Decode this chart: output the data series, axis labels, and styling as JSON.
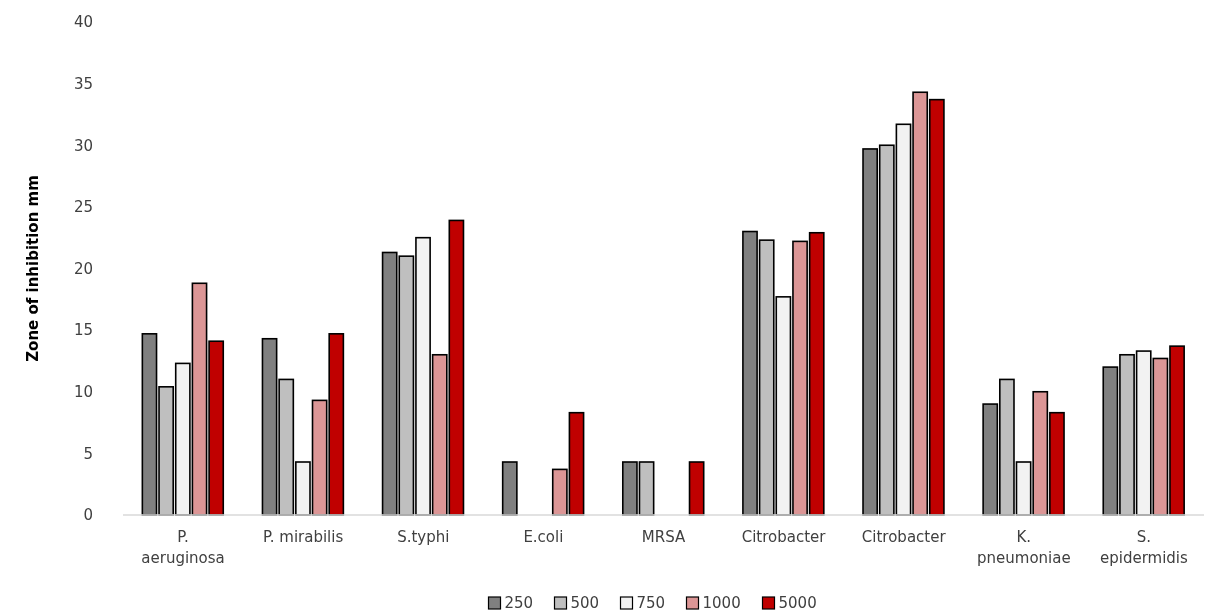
{
  "chart_data": {
    "type": "bar",
    "ylabel": "Zone of inhibition mm",
    "categories": [
      "P. aeruginosa",
      "P. mirabilis",
      "S.typhi",
      "E.coli",
      "MRSA",
      "Citrobacter",
      "Citrobacter",
      "K. pneumoniae",
      "S. epidermidis"
    ],
    "series": [
      {
        "name": "250",
        "color": "#808080",
        "values": [
          14.7,
          14.3,
          21.3,
          4.3,
          4.3,
          23.0,
          29.7,
          9.0,
          12.0
        ]
      },
      {
        "name": "500",
        "color": "#bfbfbf",
        "values": [
          10.4,
          11.0,
          21.0,
          null,
          4.3,
          22.3,
          30.0,
          11.0,
          13.0
        ]
      },
      {
        "name": "750",
        "color": "#f2f2f2",
        "values": [
          12.3,
          4.3,
          22.5,
          null,
          null,
          17.7,
          31.7,
          4.3,
          13.3
        ]
      },
      {
        "name": "1000",
        "color": "#dc9696",
        "values": [
          18.8,
          9.3,
          13.0,
          3.7,
          null,
          22.2,
          34.3,
          10.0,
          12.7
        ]
      },
      {
        "name": "5000",
        "color": "#c00000",
        "values": [
          14.1,
          14.7,
          23.9,
          8.3,
          4.3,
          22.9,
          33.7,
          8.3,
          13.7
        ]
      }
    ],
    "ylim": [
      0,
      40
    ],
    "yticks": [
      0,
      5,
      10,
      15,
      20,
      25,
      30,
      35,
      40
    ],
    "grid": false,
    "legend": "bottom"
  }
}
